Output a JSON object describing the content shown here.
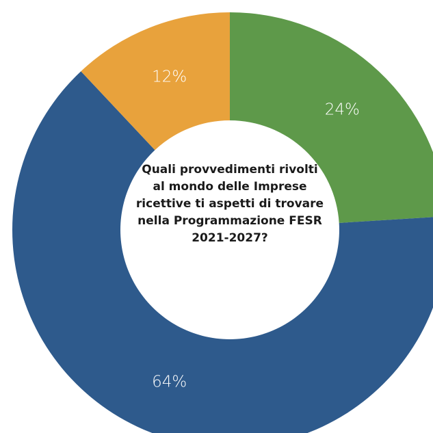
{
  "chart_data": {
    "type": "donut",
    "title": "Quali provvedimenti rivolti al mondo delle Imprese ricettive ti aspetti di trovare nella Programmazione FESR 2021-2027?",
    "values": [
      24,
      64,
      12
    ],
    "value_labels": [
      "24%",
      "64%",
      "12%"
    ],
    "colors": [
      "#5e994a",
      "#2e5a8c",
      "#e8a23c"
    ]
  }
}
